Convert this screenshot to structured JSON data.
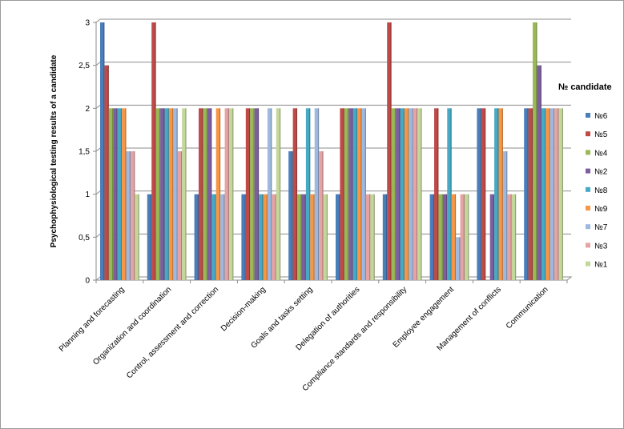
{
  "chart_data": {
    "type": "bar",
    "title": "",
    "ylabel": "Psychophysiological  testing results of a candidate",
    "xlabel": "",
    "ylim": [
      0,
      3
    ],
    "yticks": [
      "0",
      "0,5",
      "1",
      "1,5",
      "2",
      "2,5",
      "3"
    ],
    "grid": true,
    "legend_title": "№ candidate",
    "legend_position": "right",
    "categories": [
      "Planning and forecasting",
      "Organization and coordination",
      "Control, assessment and correction",
      "Decision-making",
      "Goals and tasks setting",
      "Delegation of authorities",
      "Compliance standards and responsibility",
      "Employee engagement",
      "Management of conflicts",
      "Communication"
    ],
    "series": [
      {
        "name": "№6",
        "color": "#4a7ebb",
        "values": [
          3,
          1,
          1,
          1,
          1.5,
          1,
          1,
          1,
          2,
          2
        ]
      },
      {
        "name": "№5",
        "color": "#be4b48",
        "values": [
          2.5,
          3,
          2,
          2,
          2,
          2,
          3,
          2,
          2,
          2
        ]
      },
      {
        "name": "№4",
        "color": "#98b954",
        "values": [
          2,
          2,
          2,
          2,
          1,
          2,
          2,
          1,
          0,
          3
        ]
      },
      {
        "name": "№2",
        "color": "#7d5fa0",
        "values": [
          2,
          2,
          2,
          2,
          1,
          2,
          2,
          1,
          1,
          2.5
        ]
      },
      {
        "name": "№8",
        "color": "#46aac5",
        "values": [
          2,
          2,
          1,
          1,
          2,
          2,
          2,
          2,
          2,
          2
        ]
      },
      {
        "name": "№9",
        "color": "#f79646",
        "values": [
          2,
          2,
          2,
          1,
          1,
          2,
          2,
          1,
          2,
          2
        ]
      },
      {
        "name": "№7",
        "color": "#9eb8e0",
        "values": [
          1.5,
          2,
          1,
          2,
          2,
          2,
          2,
          0.5,
          1.5,
          2
        ]
      },
      {
        "name": "№3",
        "color": "#e5a3a3",
        "values": [
          1.5,
          1.5,
          2,
          1,
          1.5,
          1,
          2,
          1,
          1,
          2
        ]
      },
      {
        "name": "№1",
        "color": "#c4d79b",
        "values": [
          1,
          2,
          2,
          2,
          1,
          1,
          2,
          1,
          1,
          2
        ]
      }
    ]
  }
}
